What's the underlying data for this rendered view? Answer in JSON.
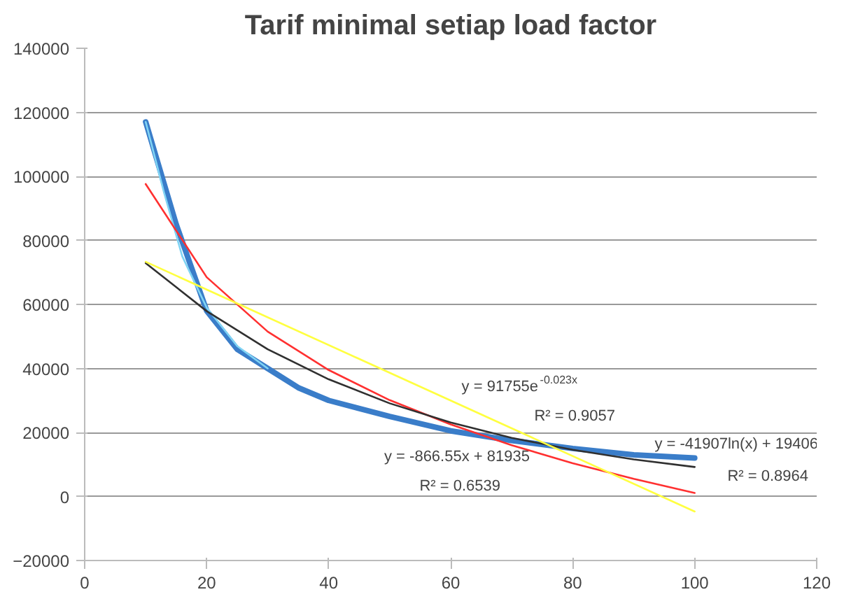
{
  "chart_data": {
    "type": "line",
    "title": "Tarif minimal setiap load factor",
    "xlim": [
      0,
      120
    ],
    "xticks": [
      0,
      20,
      40,
      60,
      80,
      100,
      120
    ],
    "ylim": [
      -20000,
      140000
    ],
    "yticks": [
      -20000,
      0,
      20000,
      40000,
      60000,
      80000,
      100000,
      120000,
      140000
    ],
    "grid": "y",
    "marker": "none",
    "line_style": "solid",
    "series": [
      {
        "color": "#3a7dc9",
        "x": [
          10,
          15,
          20,
          25,
          30,
          35,
          40,
          50,
          60,
          70,
          80,
          90,
          100
        ],
        "values": [
          117000,
          85000,
          58000,
          46000,
          40000,
          34000,
          30000,
          25000,
          20500,
          17500,
          15000,
          13000,
          12000
        ]
      },
      {
        "color": "#80d4f4",
        "x": [
          10,
          13,
          16,
          20,
          25,
          30
        ],
        "values": [
          117000,
          95000,
          75000,
          59000,
          47000,
          40000
        ]
      },
      {
        "color": "#ff3030",
        "x": [
          10,
          20,
          30,
          40,
          50,
          60,
          70,
          80,
          90,
          100
        ],
        "values": [
          97600,
          68500,
          51500,
          39500,
          30100,
          22500,
          16000,
          10400,
          5500,
          1100
        ]
      },
      {
        "color": "#303030",
        "x": [
          10,
          20,
          30,
          40,
          50,
          60,
          70,
          80,
          90,
          100
        ],
        "values": [
          72900,
          57900,
          46000,
          36600,
          29100,
          23100,
          18300,
          14600,
          11600,
          9200
        ]
      },
      {
        "color": "#ffff40",
        "x": [
          10,
          100
        ],
        "values": [
          73300,
          -4700
        ]
      }
    ],
    "annotations": [
      "y = 91755e$^{-0.023x}$",
      "R² = 0.9057",
      "y = -866.55x + 81935",
      "R² = 0.6539",
      "y = -41907ln(x) + 19406",
      "R² = 0.8964"
    ]
  }
}
